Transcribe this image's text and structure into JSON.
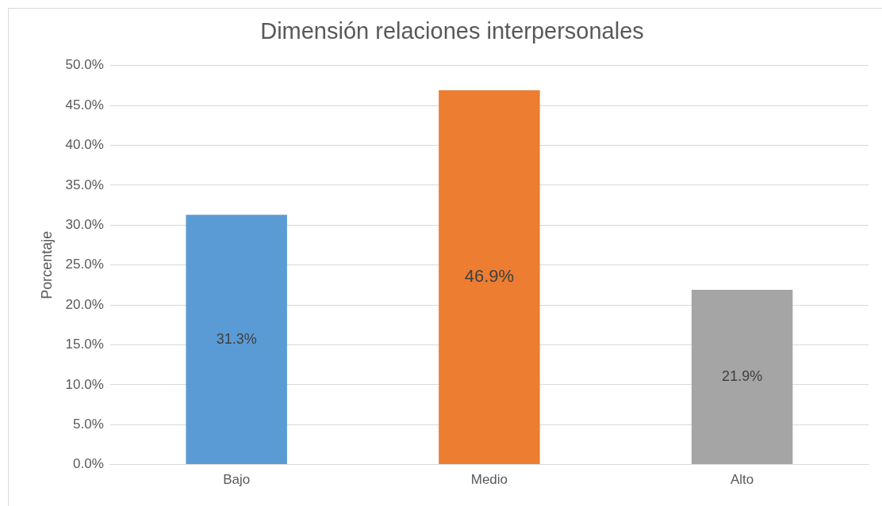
{
  "chart_data": {
    "type": "bar",
    "title": "Dimensión relaciones interpersonales",
    "ylabel": "Porcentaje",
    "categories": [
      "Bajo",
      "Medio",
      "Alto"
    ],
    "values": [
      31.3,
      46.9,
      21.9
    ],
    "colors": [
      "#5b9bd5",
      "#ed7d31",
      "#a5a5a5"
    ],
    "value_labels": [
      "31.3%",
      "46.9%",
      "21.9%"
    ],
    "ylim": [
      0,
      50
    ],
    "yticks": [
      {
        "value": 0,
        "label": "0.0%"
      },
      {
        "value": 5,
        "label": "5.0%"
      },
      {
        "value": 10,
        "label": "10.0%"
      },
      {
        "value": 15,
        "label": "15.0%"
      },
      {
        "value": 20,
        "label": "20.0%"
      },
      {
        "value": 25,
        "label": "25.0%"
      },
      {
        "value": 30,
        "label": "30.0%"
      },
      {
        "value": 35,
        "label": "35.0%"
      },
      {
        "value": 40,
        "label": "40.0%"
      },
      {
        "value": 45,
        "label": "45.0%"
      },
      {
        "value": 50,
        "label": "50.0%"
      }
    ],
    "grid": "y",
    "legend": false
  }
}
